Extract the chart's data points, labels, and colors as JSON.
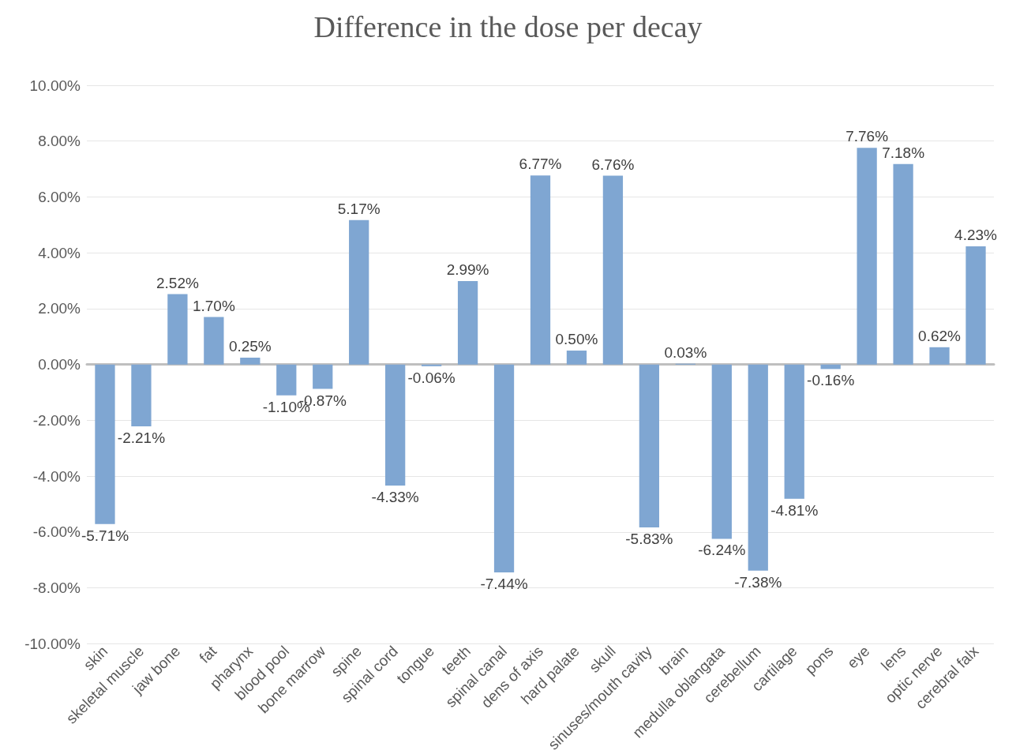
{
  "chart_data": {
    "type": "bar",
    "title": "Difference in the dose per decay",
    "categories": [
      "skin",
      "skeletal muscle",
      "jaw bone",
      "fat",
      "pharynx",
      "blood pool",
      "bone marrow",
      "spine",
      "spinal cord",
      "tongue",
      "teeth",
      "spinal canal",
      "dens of axis",
      "hard palate",
      "skull",
      "sinuses/mouth cavity",
      "brain",
      "medulla oblangata",
      "cerebellum",
      "cartilage",
      "pons",
      "eye",
      "lens",
      "optic nerve",
      "cerebral falx"
    ],
    "values": [
      -5.71,
      -2.21,
      2.52,
      1.7,
      0.25,
      -1.1,
      -0.87,
      5.17,
      -4.33,
      -0.06,
      2.99,
      -7.44,
      6.77,
      0.5,
      6.76,
      -5.83,
      0.03,
      -6.24,
      -7.38,
      -4.81,
      -0.16,
      7.76,
      7.18,
      0.62,
      4.23
    ],
    "value_labels": [
      "-5.71%",
      "-2.21%",
      "2.52%",
      "1.70%",
      "0.25%",
      "-1.10%",
      "-0.87%",
      "5.17%",
      "-4.33%",
      "-0.06%",
      "2.99%",
      "-7.44%",
      "6.77%",
      "0.50%",
      "6.76%",
      "-5.83%",
      "0.03%",
      "-6.24%",
      "-7.38%",
      "-4.81%",
      "-0.16%",
      "7.76%",
      "7.18%",
      "0.62%",
      "4.23%"
    ],
    "color": "#7fa6d2",
    "ylim": [
      -10,
      10
    ],
    "yticks": [
      {
        "value": -10,
        "label": "-10.00%"
      },
      {
        "value": -8,
        "label": "-8.00%"
      },
      {
        "value": -6,
        "label": "-6.00%"
      },
      {
        "value": -4,
        "label": "-4.00%"
      },
      {
        "value": -2,
        "label": "-2.00%"
      },
      {
        "value": 0,
        "label": "0.00%"
      },
      {
        "value": 2,
        "label": "2.00%"
      },
      {
        "value": 4,
        "label": "4.00%"
      },
      {
        "value": 6,
        "label": "6.00%"
      },
      {
        "value": 8,
        "label": "8.00%"
      },
      {
        "value": 10,
        "label": "10.00%"
      }
    ],
    "grid": "y"
  }
}
